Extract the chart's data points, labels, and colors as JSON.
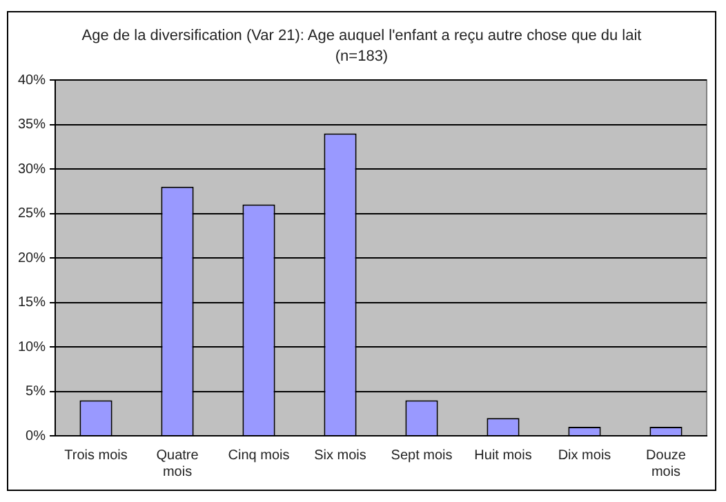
{
  "chart_data": {
    "type": "bar",
    "title": "Age de la diversification (Var 21): Age auquel l'enfant a reçu autre chose que du lait",
    "subtitle": "(n=183)",
    "categories": [
      "Trois mois",
      "Quatre mois",
      "Cinq mois",
      "Six mois",
      "Sept mois",
      "Huit mois",
      "Dix mois",
      "Douze mois"
    ],
    "values": [
      4,
      28,
      26,
      34,
      4,
      2,
      1,
      1
    ],
    "color": "#9999ff",
    "ylim": [
      0,
      40
    ],
    "yticks": [
      {
        "value": 0,
        "label": "0%"
      },
      {
        "value": 5,
        "label": "5%"
      },
      {
        "value": 10,
        "label": "10%"
      },
      {
        "value": 15,
        "label": "15%"
      },
      {
        "value": 20,
        "label": "20%"
      },
      {
        "value": 25,
        "label": "25%"
      },
      {
        "value": 30,
        "label": "30%"
      },
      {
        "value": 35,
        "label": "35%"
      },
      {
        "value": 40,
        "label": "40%"
      }
    ],
    "grid": "y",
    "legend": false
  }
}
